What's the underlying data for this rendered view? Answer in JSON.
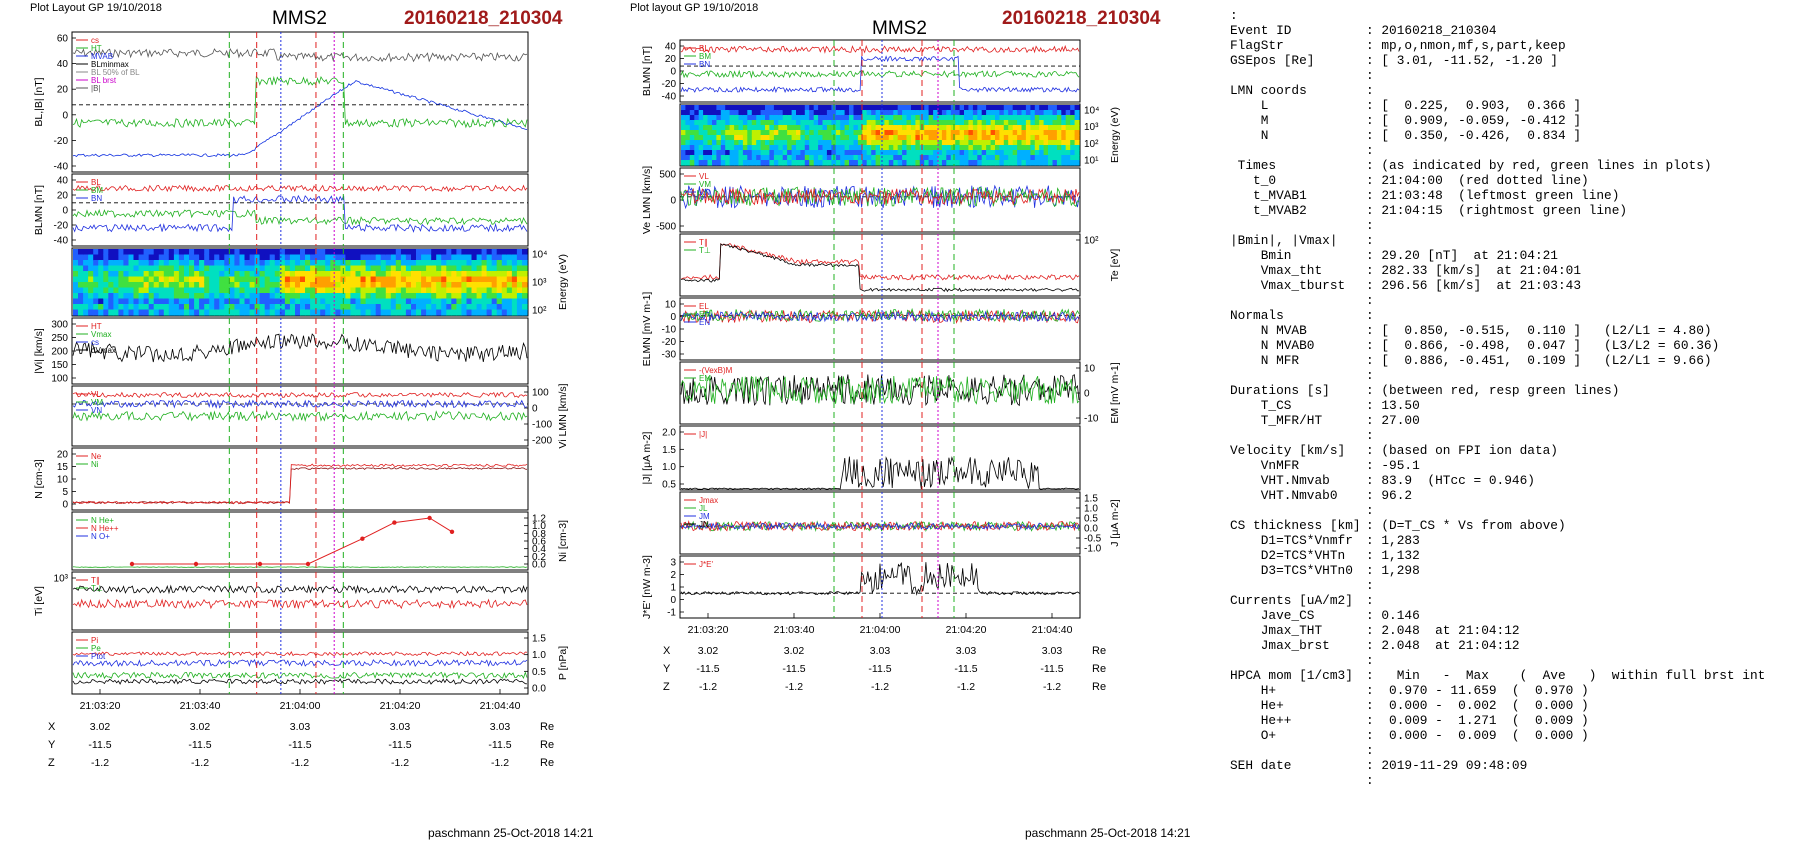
{
  "left": {
    "header": "Plot Layout GP 19/10/2018",
    "sc": "MMS2",
    "event": "20160218_210304",
    "footer": "paschmann 25-Oct-2018 14:21",
    "panels": [
      {
        "ylabel": "BL,|B| [nT]",
        "ticks": [
          "60",
          "40",
          "20",
          "0",
          "-20",
          "-40"
        ],
        "legend": [
          "cs",
          "HT",
          "MVAB",
          "BLminmax",
          "BL 50% of BL",
          "BL brst",
          "|B|"
        ]
      },
      {
        "ylabel": "BLMN [nT]",
        "ticks": [
          "40",
          "20",
          "0",
          "-20",
          "-40"
        ],
        "legend": [
          "BL",
          "BM",
          "BN"
        ]
      },
      {
        "ylabel": "Energy (eV)",
        "ticks": [
          "10⁴",
          "10³",
          "10²"
        ]
      },
      {
        "ylabel": "|Vi| [km/s]",
        "ticks": [
          "300",
          "250",
          "200",
          "150",
          "100"
        ],
        "legend": [
          "HT",
          "Vmax",
          "cs",
          "dVmax"
        ]
      },
      {
        "ylabel": "Vi LMN [km/s]",
        "ticks": [
          "100",
          "0",
          "-100",
          "-200"
        ],
        "legend": [
          "VL",
          "VM",
          "VN"
        ]
      },
      {
        "ylabel": "N [cm-3]",
        "ticks": [
          "20",
          "15",
          "10",
          "5",
          "0"
        ],
        "legend": [
          "Ne",
          "Ni"
        ]
      },
      {
        "ylabel": "Ni [cm-3]",
        "ticks": [
          "1.2",
          "1.0",
          "0.8",
          "0.6",
          "0.4",
          "0.2",
          "0.0"
        ],
        "legend": [
          "N He+",
          "N He++",
          "N O+"
        ]
      },
      {
        "ylabel": "Ti [eV]",
        "ticks": [
          "10³"
        ],
        "legend": [
          "T∥",
          "T⊥"
        ]
      },
      {
        "ylabel": "P [nPa]",
        "ticks": [
          "1.5",
          "1.0",
          "0.5",
          "0.0"
        ],
        "legend": [
          "Pi",
          "Pe",
          "Ptot"
        ]
      }
    ],
    "xticks": [
      "21:03:20",
      "21:03:40",
      "21:04:00",
      "21:04:20",
      "21:04:40"
    ],
    "coords": {
      "X": [
        "3.02",
        "3.02",
        "3.03",
        "3.03",
        "3.03"
      ],
      "Y": [
        "-11.5",
        "-11.5",
        "-11.5",
        "-11.5",
        "-11.5"
      ],
      "Z": [
        "-1.2",
        "-1.2",
        "-1.2",
        "-1.2",
        "-1.2"
      ],
      "unit": "Re"
    }
  },
  "middle": {
    "header": "Plot layout GP 19/10/2018",
    "sc": "MMS2",
    "event": "20160218_210304",
    "footer": "paschmann 25-Oct-2018 14:21",
    "panels": [
      {
        "ylabel": "BLMN [nT]",
        "ticks": [
          "40",
          "20",
          "0",
          "-20",
          "-40"
        ],
        "legend": [
          "BL",
          "BM",
          "BN"
        ]
      },
      {
        "ylabel": "Energy (eV)",
        "ticks": [
          "10⁴",
          "10³",
          "10²",
          "10¹"
        ]
      },
      {
        "ylabel": "Ve LMN [km/s]",
        "ticks": [
          "500",
          "0",
          "-500"
        ],
        "legend": [
          "VL",
          "VM",
          "VN"
        ]
      },
      {
        "ylabel": "Te [eV]",
        "ticks": [
          "10²"
        ],
        "legend": [
          "T∥",
          "T⊥"
        ]
      },
      {
        "ylabel": "ELMN [mV m-1]",
        "ticks": [
          "10",
          "0",
          "-10",
          "-20",
          "-30"
        ],
        "legend": [
          "EL",
          "EM",
          "EN"
        ]
      },
      {
        "ylabel": "EM [mV m-1]",
        "ticks": [
          "10",
          "0",
          "-10"
        ],
        "legend": [
          "-(VexB)M",
          "EM"
        ]
      },
      {
        "ylabel": "|J| [μA m-2]",
        "ticks": [
          "2.0",
          "1.5",
          "1.0",
          "0.5"
        ],
        "legend": [
          "|J|"
        ]
      },
      {
        "ylabel": "J [μA m-2]",
        "ticks": [
          "1.5",
          "1.0",
          "0.5",
          "0.0",
          "-0.5",
          "-1.0"
        ],
        "legend": [
          "Jmax",
          "JL",
          "JM",
          "JN"
        ]
      },
      {
        "ylabel": "J*E' [nW m-3]",
        "ticks": [
          "3",
          "2",
          "1",
          "0",
          "-1"
        ],
        "legend": [
          "J*E'"
        ]
      }
    ],
    "xticks": [
      "21:03:20",
      "21:03:40",
      "21:04:00",
      "21:04:20",
      "21:04:40"
    ],
    "coords": {
      "X": [
        "3.02",
        "3.02",
        "3.03",
        "3.03",
        "3.03"
      ],
      "Y": [
        "-11.5",
        "-11.5",
        "-11.5",
        "-11.5",
        "-11.5"
      ],
      "Z": [
        "-1.2",
        "-1.2",
        "-1.2",
        "-1.2",
        "-1.2"
      ],
      "unit": "Re"
    }
  },
  "info": [
    {
      "k": ":",
      "v": ""
    },
    {
      "k": "Event ID",
      "v": ": 20160218_210304"
    },
    {
      "k": "FlagStr",
      "v": ": mp,o,nmon,mf,s,part,keep"
    },
    {
      "k": "GSEpos [Re]",
      "v": ": [ 3.01, -11.52, -1.20 ]"
    },
    {
      "k": "",
      "v": ":"
    },
    {
      "k": "LMN coords",
      "v": ":"
    },
    {
      "k": "    L",
      "v": ": [  0.225,  0.903,  0.366 ]"
    },
    {
      "k": "    M",
      "v": ": [  0.909, -0.059, -0.412 ]"
    },
    {
      "k": "    N",
      "v": ": [  0.350, -0.426,  0.834 ]"
    },
    {
      "k": "",
      "v": ":"
    },
    {
      "k": " Times",
      "v": ": (as indicated by red, green lines in plots)"
    },
    {
      "k": "   t_0",
      "v": ": 21:04:00  (red dotted line)"
    },
    {
      "k": "   t_MVAB1",
      "v": ": 21:03:48  (leftmost green line)"
    },
    {
      "k": "   t_MVAB2",
      "v": ": 21:04:15  (rightmost green line)"
    },
    {
      "k": "",
      "v": ":"
    },
    {
      "k": "|Bmin|, |Vmax|",
      "v": ":"
    },
    {
      "k": "    Bmin",
      "v": ": 29.20 [nT]  at 21:04:21"
    },
    {
      "k": "    Vmax_tht",
      "v": ": 282.33 [km/s]  at 21:04:01"
    },
    {
      "k": "    Vmax_tburst",
      "v": ": 296.56 [km/s]  at 21:03:43"
    },
    {
      "k": "",
      "v": ":"
    },
    {
      "k": "Normals",
      "v": ":"
    },
    {
      "k": "    N MVAB",
      "v": ": [  0.850, -0.515,  0.110 ]   (L2/L1 = 4.80)"
    },
    {
      "k": "    N MVAB0",
      "v": ": [  0.866, -0.498,  0.047 ]   (L3/L2 = 60.36)"
    },
    {
      "k": "    N MFR",
      "v": ": [  0.886, -0.451,  0.109 ]   (L2/L1 = 9.66)"
    },
    {
      "k": "",
      "v": ":"
    },
    {
      "k": "Durations [s]",
      "v": ": (between red, resp green lines)"
    },
    {
      "k": "    T_CS",
      "v": ": 13.50"
    },
    {
      "k": "    T_MFR/HT",
      "v": ": 27.00"
    },
    {
      "k": "",
      "v": ":"
    },
    {
      "k": "Velocity [km/s]",
      "v": ": (based on FPI ion data)"
    },
    {
      "k": "    VnMFR",
      "v": ": -95.1"
    },
    {
      "k": "    VHT.Nmvab",
      "v": ": 83.9  (HTcc = 0.946)"
    },
    {
      "k": "    VHT.Nmvab0",
      "v": ": 96.2"
    },
    {
      "k": "",
      "v": ":"
    },
    {
      "k": "CS thickness [km]",
      "v": ": (D=T_CS * Vs from above)"
    },
    {
      "k": "    D1=TCS*Vnmfr",
      "v": ": 1,283"
    },
    {
      "k": "    D2=TCS*VHTn",
      "v": ": 1,132"
    },
    {
      "k": "    D3=TCS*VHTn0",
      "v": ": 1,298"
    },
    {
      "k": "",
      "v": ":"
    },
    {
      "k": "Currents [uA/m2]",
      "v": ":"
    },
    {
      "k": "    Jave_CS",
      "v": ": 0.146"
    },
    {
      "k": "    Jmax_THT",
      "v": ": 2.048  at 21:04:12"
    },
    {
      "k": "    Jmax_brst",
      "v": ": 2.048  at 21:04:12"
    },
    {
      "k": "",
      "v": ":"
    },
    {
      "k": "HPCA mom [1/cm3]",
      "v": ":   Min   -  Max    (  Ave   )  within full brst int"
    },
    {
      "k": "    H+",
      "v": ":  0.970 - 11.659  (  0.970 )"
    },
    {
      "k": "    He+",
      "v": ":  0.000 -  0.002  (  0.000 )"
    },
    {
      "k": "    He++",
      "v": ":  0.009 -  1.271  (  0.009 )"
    },
    {
      "k": "    O+",
      "v": ":  0.000 -  0.009  (  0.000 )"
    },
    {
      "k": "",
      "v": ":"
    },
    {
      "k": "SEH date",
      "v": ": 2019-11-29 09:48:09"
    },
    {
      "k": "",
      "v": ":"
    }
  ],
  "chart_data": [
    {
      "type": "line",
      "title": "MMS2 20160218_210304",
      "xlabel": "",
      "x_range": [
        "21:03:14",
        "21:04:44"
      ],
      "series": [
        {
          "name": "BL brst",
          "x": [
            "21:03:14",
            "21:03:30",
            "21:03:48",
            "21:03:55",
            "21:04:02",
            "21:04:10",
            "21:04:15",
            "21:04:20",
            "21:04:30",
            "21:04:44"
          ],
          "values": [
            -40,
            -42,
            -42,
            -35,
            -10,
            5,
            10,
            5,
            -18,
            -22
          ]
        },
        {
          "name": "|B|",
          "x": [
            "21:03:14",
            "21:03:30",
            "21:03:48",
            "21:04:00",
            "21:04:10",
            "21:04:20",
            "21:04:30",
            "21:04:44"
          ],
          "values": [
            55,
            57,
            55,
            60,
            30,
            40,
            35,
            38
          ]
        }
      ],
      "vlines": {
        "red_dashed": [
          "21:03:55",
          "21:04:08"
        ],
        "green_dashed": [
          "21:03:48",
          "21:04:15"
        ],
        "red_dotted": "21:04:00"
      },
      "ylim": [
        -50,
        65
      ]
    },
    {
      "type": "line",
      "title": "MMS2 20160218_210304",
      "series": [
        {
          "name": "|J|",
          "x": [
            "21:03:14",
            "21:03:50",
            "21:04:00",
            "21:04:08",
            "21:04:12",
            "21:04:20",
            "21:04:44"
          ],
          "values": [
            0.02,
            0.05,
            0.3,
            0.8,
            2.0,
            0.6,
            0.2
          ]
        }
      ],
      "ylim": [
        0,
        2
      ]
    }
  ]
}
